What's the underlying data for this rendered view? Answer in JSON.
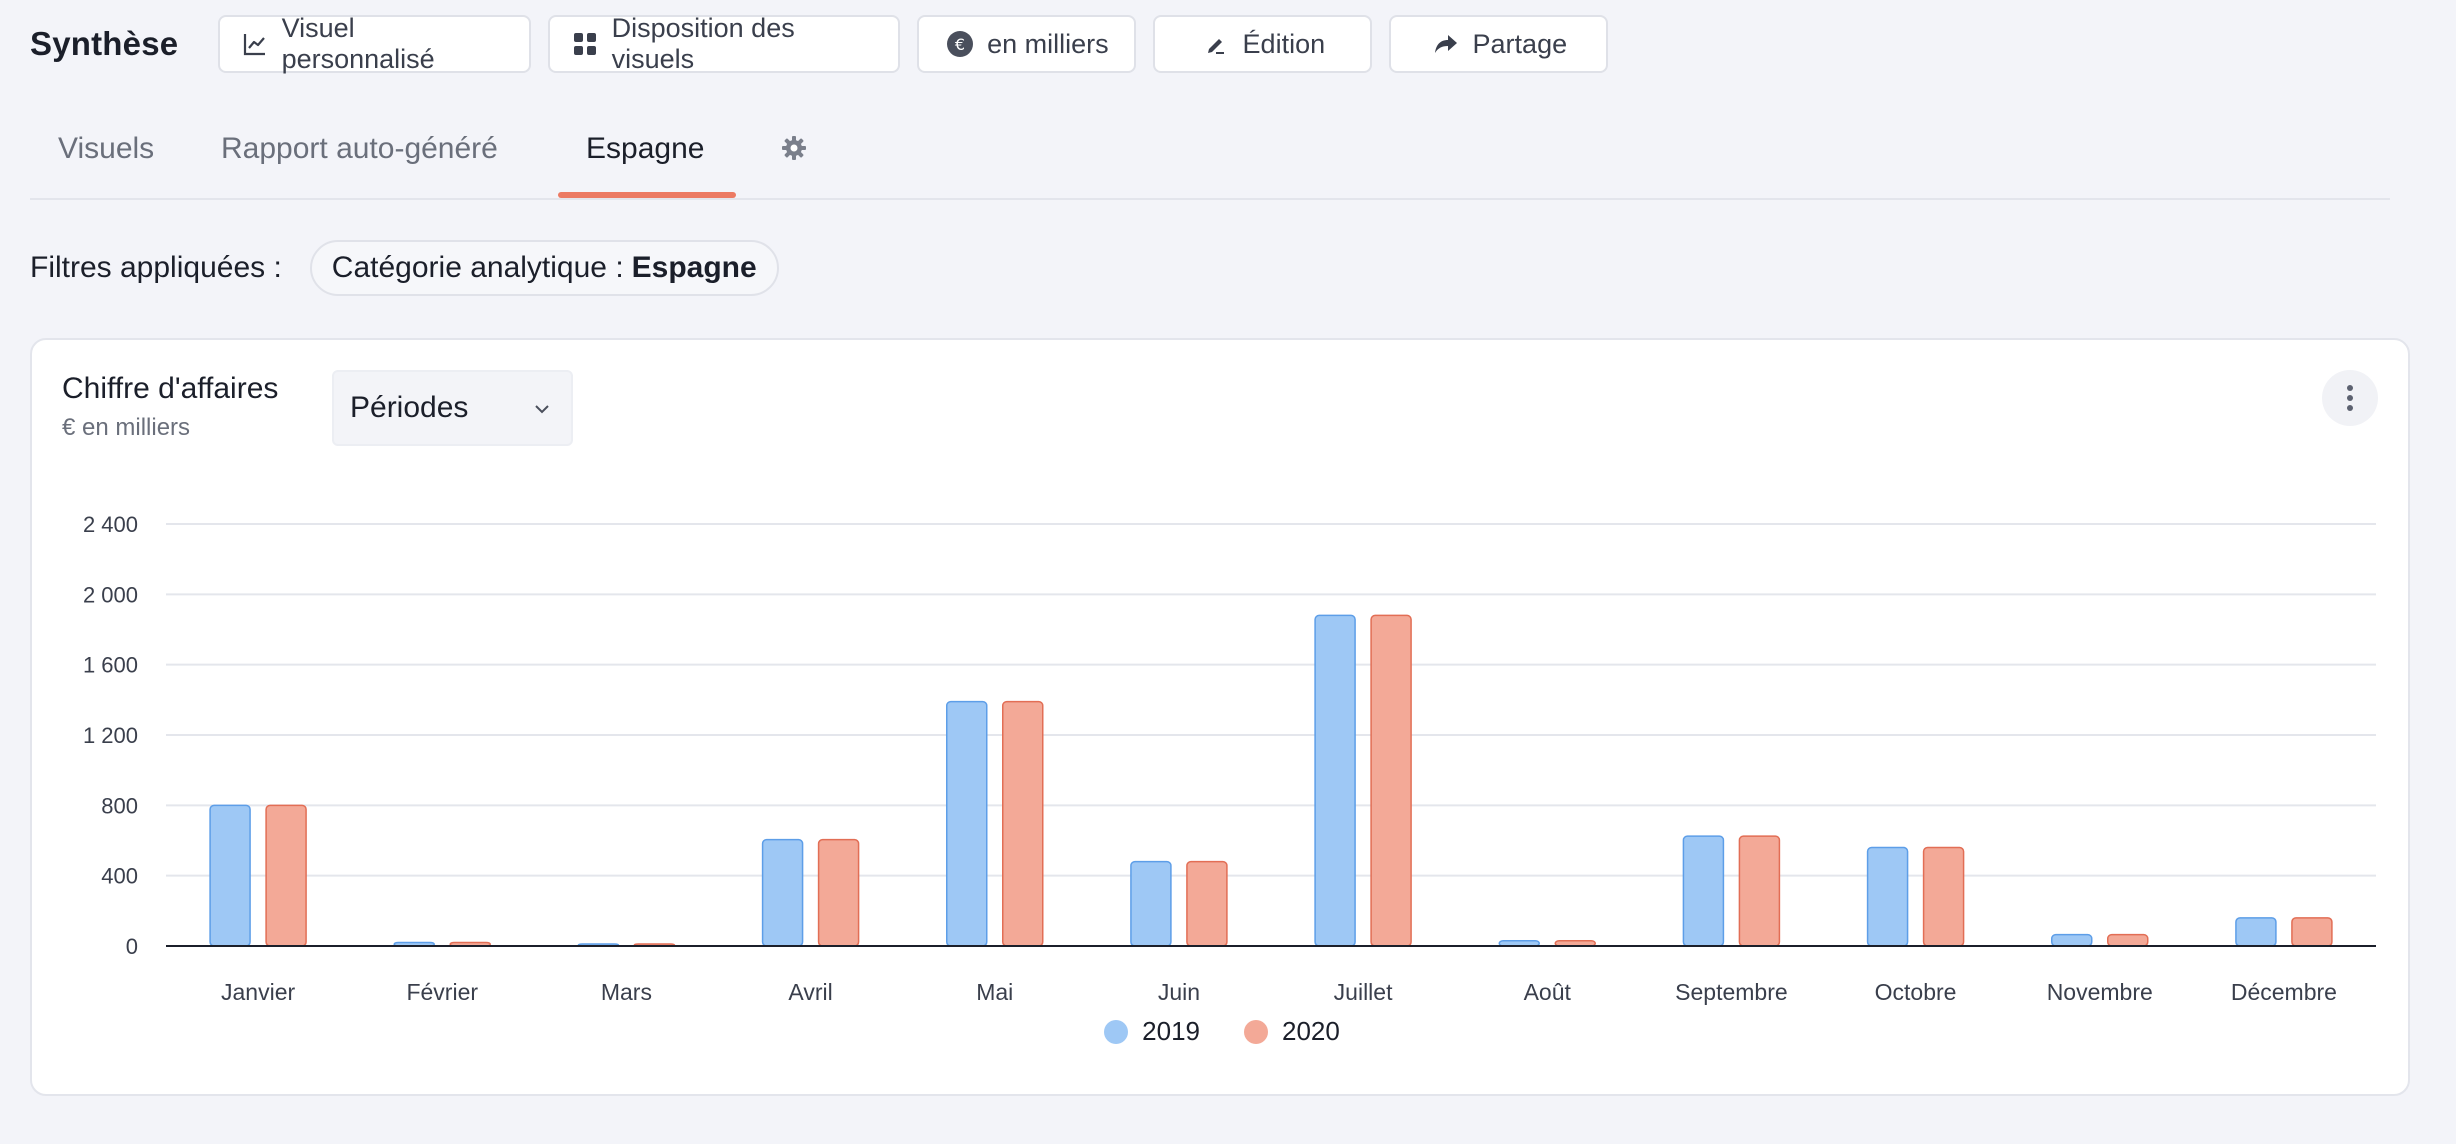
{
  "header": {
    "title": "Synthèse",
    "buttons": {
      "visuel": "Visuel personnalisé",
      "disposition": "Disposition des visuels",
      "milliers": "en milliers",
      "edition": "Édition",
      "partage": "Partage"
    }
  },
  "tabs": [
    {
      "label": "Visuels"
    },
    {
      "label": "Rapport auto-généré"
    },
    {
      "label": "Espagne",
      "active": true
    }
  ],
  "filters": {
    "label": "Filtres appliquées :",
    "chip_key": "Catégorie analytique :",
    "chip_value": "Espagne"
  },
  "card": {
    "title": "Chiffre d'affaires",
    "subtitle": "€ en milliers",
    "period_select": "Périodes"
  },
  "colors": {
    "accent": "#ec7a63",
    "series_2019_fill": "#9ec8f5",
    "series_2019_stroke": "#5d9ee8",
    "series_2020_fill": "#f3a997",
    "series_2020_stroke": "#e26e55"
  },
  "icons": [
    "chart-line-icon",
    "grid-icon",
    "euro-icon",
    "pen-icon",
    "share-icon",
    "gear-icon",
    "chevron-down-icon",
    "kebab-icon"
  ],
  "chart_data": {
    "type": "bar",
    "categories": [
      "Janvier",
      "Février",
      "Mars",
      "Avril",
      "Mai",
      "Juin",
      "Juillet",
      "Août",
      "Septembre",
      "Octobre",
      "Novembre",
      "Décembre"
    ],
    "series": [
      {
        "name": "2019",
        "values": [
          800,
          20,
          10,
          605,
          1390,
          480,
          1880,
          30,
          625,
          560,
          65,
          160
        ]
      },
      {
        "name": "2020",
        "values": [
          800,
          20,
          10,
          605,
          1390,
          480,
          1880,
          30,
          625,
          560,
          65,
          160
        ]
      }
    ],
    "yticks": [
      "0",
      "400",
      "800",
      "1 200",
      "1 600",
      "2 000",
      "2 400"
    ],
    "ylim": [
      0,
      2400
    ],
    "grid": true,
    "legend": "bottom-center"
  }
}
